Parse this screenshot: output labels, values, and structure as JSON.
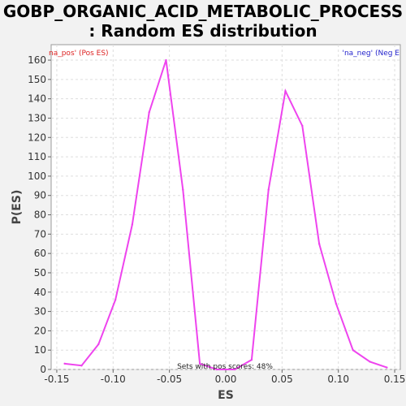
{
  "chart_data": {
    "type": "line",
    "title_line1": "GOBP_ORGANIC_ACID_METABOLIC_PROCESS",
    "title_line2": ": Random ES distribution",
    "xlabel": "ES",
    "ylabel": "P(ES)",
    "xlim": [
      -0.155,
      0.155
    ],
    "ylim": [
      0,
      168
    ],
    "x_ticks": [
      -0.15,
      -0.1,
      -0.05,
      0.0,
      0.05,
      0.1,
      0.15
    ],
    "x_tick_labels": [
      "-0.15",
      "-0.10",
      "-0.05",
      "0.00",
      "0.05",
      "0.10",
      "0.15"
    ],
    "y_ticks": [
      0,
      10,
      20,
      30,
      40,
      50,
      60,
      70,
      80,
      90,
      100,
      110,
      120,
      130,
      140,
      150,
      160
    ],
    "grid": true,
    "legend": {
      "pos_label": "na_pos' (Pos ES)",
      "neg_label": "'na_neg' (Neg E",
      "pos_color": "#dd2222",
      "neg_color": "#2222cc"
    },
    "annotation": "Sets with pos scores: 48%",
    "series": [
      {
        "color": "#ee44ee",
        "x": [
          -0.143,
          -0.128,
          -0.113,
          -0.098,
          -0.083,
          -0.068,
          -0.053,
          -0.038,
          -0.023,
          -0.008,
          0.008,
          0.023,
          0.038,
          0.053,
          0.068,
          0.083,
          0.098,
          0.113,
          0.128,
          0.143
        ],
        "y": [
          3,
          2,
          13,
          36,
          75,
          133,
          160,
          93,
          3,
          0,
          0,
          5,
          93,
          144,
          126,
          65,
          34,
          10,
          4,
          1
        ]
      }
    ]
  }
}
